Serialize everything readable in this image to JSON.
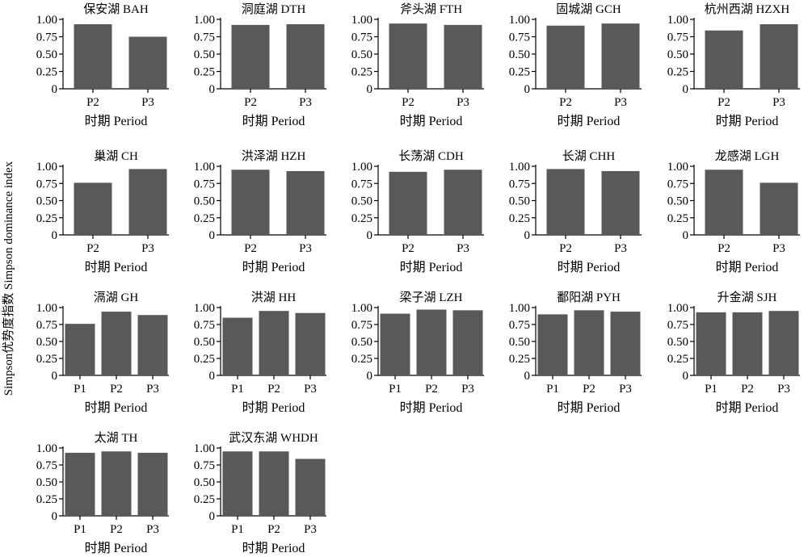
{
  "y_axis_label": "Simpson优势度指数 Simpson dominance index",
  "chart_data": [
    {
      "type": "bar",
      "title": "保安湖 BAH",
      "xlabel": "时期 Period",
      "categories": [
        "P2",
        "P3"
      ],
      "values": [
        0.93,
        0.75
      ],
      "ylim": [
        0,
        1
      ],
      "yticks": [
        "0",
        "0.25",
        "0.50",
        "0.75",
        "1.00"
      ]
    },
    {
      "type": "bar",
      "title": "洞庭湖 DTH",
      "xlabel": "时期 Period",
      "categories": [
        "P2",
        "P3"
      ],
      "values": [
        0.92,
        0.93
      ],
      "ylim": [
        0,
        1
      ],
      "yticks": [
        "0",
        "0.25",
        "0.50",
        "0.75",
        "1.00"
      ]
    },
    {
      "type": "bar",
      "title": "斧头湖 FTH",
      "xlabel": "时期 Period",
      "categories": [
        "P2",
        "P3"
      ],
      "values": [
        0.94,
        0.92
      ],
      "ylim": [
        0,
        1
      ],
      "yticks": [
        "0",
        "0.25",
        "0.50",
        "0.75",
        "1.00"
      ]
    },
    {
      "type": "bar",
      "title": "固城湖 GCH",
      "xlabel": "时期 Period",
      "categories": [
        "P2",
        "P3"
      ],
      "values": [
        0.91,
        0.94
      ],
      "ylim": [
        0,
        1
      ],
      "yticks": [
        "0",
        "0.25",
        "0.50",
        "0.75",
        "1.00"
      ]
    },
    {
      "type": "bar",
      "title": "杭州西湖 HZXH",
      "xlabel": "时期 Period",
      "categories": [
        "P2",
        "P3"
      ],
      "values": [
        0.84,
        0.93
      ],
      "ylim": [
        0,
        1
      ],
      "yticks": [
        "0",
        "0.25",
        "0.50",
        "0.75",
        "1.00"
      ]
    },
    {
      "type": "bar",
      "title": "巢湖 CH",
      "xlabel": "时期 Period",
      "categories": [
        "P2",
        "P3"
      ],
      "values": [
        0.76,
        0.96
      ],
      "ylim": [
        0,
        1
      ],
      "yticks": [
        "0",
        "0.25",
        "0.50",
        "0.75",
        "1.00"
      ]
    },
    {
      "type": "bar",
      "title": "洪泽湖 HZH",
      "xlabel": "时期 Period",
      "categories": [
        "P2",
        "P3"
      ],
      "values": [
        0.95,
        0.93
      ],
      "ylim": [
        0,
        1
      ],
      "yticks": [
        "0",
        "0.25",
        "0.50",
        "0.75",
        "1.00"
      ]
    },
    {
      "type": "bar",
      "title": "长荡湖 CDH",
      "xlabel": "时期 Period",
      "categories": [
        "P2",
        "P3"
      ],
      "values": [
        0.92,
        0.95
      ],
      "ylim": [
        0,
        1
      ],
      "yticks": [
        "0",
        "0.25",
        "0.50",
        "0.75",
        "1.00"
      ]
    },
    {
      "type": "bar",
      "title": "长湖 CHH",
      "xlabel": "时期 Period",
      "categories": [
        "P2",
        "P3"
      ],
      "values": [
        0.96,
        0.93
      ],
      "ylim": [
        0,
        1
      ],
      "yticks": [
        "0",
        "0.25",
        "0.50",
        "0.75",
        "1.00"
      ]
    },
    {
      "type": "bar",
      "title": "龙感湖 LGH",
      "xlabel": "时期 Period",
      "categories": [
        "P2",
        "P3"
      ],
      "values": [
        0.95,
        0.76
      ],
      "ylim": [
        0,
        1
      ],
      "yticks": [
        "0",
        "0.25",
        "0.50",
        "0.75",
        "1.00"
      ]
    },
    {
      "type": "bar",
      "title": "滆湖 GH",
      "xlabel": "时期 Period",
      "categories": [
        "P1",
        "P2",
        "P3"
      ],
      "values": [
        0.76,
        0.94,
        0.89
      ],
      "ylim": [
        0,
        1
      ],
      "yticks": [
        "0",
        "0.25",
        "0.50",
        "0.75",
        "1.00"
      ]
    },
    {
      "type": "bar",
      "title": "洪湖 HH",
      "xlabel": "时期 Period",
      "categories": [
        "P1",
        "P2",
        "P3"
      ],
      "values": [
        0.85,
        0.95,
        0.92
      ],
      "ylim": [
        0,
        1
      ],
      "yticks": [
        "0",
        "0.25",
        "0.50",
        "0.75",
        "1.00"
      ]
    },
    {
      "type": "bar",
      "title": "梁子湖 LZH",
      "xlabel": "时期 Period",
      "categories": [
        "P1",
        "P2",
        "P3"
      ],
      "values": [
        0.91,
        0.97,
        0.96
      ],
      "ylim": [
        0,
        1
      ],
      "yticks": [
        "0",
        "0.25",
        "0.50",
        "0.75",
        "1.00"
      ]
    },
    {
      "type": "bar",
      "title": "鄱阳湖 PYH",
      "xlabel": "时期 Period",
      "categories": [
        "P1",
        "P2",
        "P3"
      ],
      "values": [
        0.9,
        0.96,
        0.94
      ],
      "ylim": [
        0,
        1
      ],
      "yticks": [
        "0",
        "0.25",
        "0.50",
        "0.75",
        "1.00"
      ]
    },
    {
      "type": "bar",
      "title": "升金湖 SJH",
      "xlabel": "时期 Period",
      "categories": [
        "P1",
        "P2",
        "P3"
      ],
      "values": [
        0.93,
        0.93,
        0.95
      ],
      "ylim": [
        0,
        1
      ],
      "yticks": [
        "0",
        "0.25",
        "0.50",
        "0.75",
        "1.00"
      ]
    },
    {
      "type": "bar",
      "title": "太湖 TH",
      "xlabel": "时期 Period",
      "categories": [
        "P1",
        "P2",
        "P3"
      ],
      "values": [
        0.93,
        0.95,
        0.93
      ],
      "ylim": [
        0,
        1
      ],
      "yticks": [
        "0",
        "0.25",
        "0.50",
        "0.75",
        "1.00"
      ]
    },
    {
      "type": "bar",
      "title": "武汉东湖 WHDH",
      "xlabel": "时期 Period",
      "categories": [
        "P1",
        "P2",
        "P3"
      ],
      "values": [
        0.95,
        0.95,
        0.84
      ],
      "ylim": [
        0,
        1
      ],
      "yticks": [
        "0",
        "0.25",
        "0.50",
        "0.75",
        "1.00"
      ]
    }
  ]
}
